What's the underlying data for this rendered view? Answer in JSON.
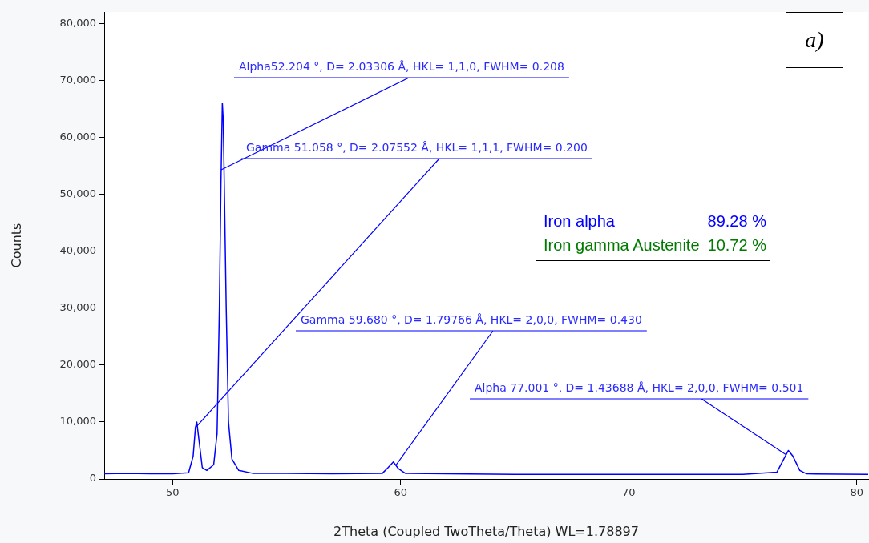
{
  "chart_data": {
    "type": "line",
    "xlabel": "2Theta (Coupled TwoTheta/Theta) WL=1.78897",
    "ylabel": "Counts",
    "x": [
      47,
      48,
      49,
      50,
      50.7,
      50.9,
      51.0,
      51.06,
      51.15,
      51.3,
      51.5,
      51.8,
      51.95,
      52.05,
      52.12,
      52.18,
      52.22,
      52.28,
      52.35,
      52.45,
      52.6,
      52.9,
      53.5,
      55,
      57,
      59.2,
      59.45,
      59.68,
      59.9,
      60.2,
      62,
      65,
      70,
      75,
      76.5,
      76.8,
      77.0,
      77.2,
      77.5,
      77.8,
      80.5
    ],
    "series": [
      {
        "color": "#0000ff",
        "values": [
          900,
          1000,
          900,
          900,
          1100,
          4000,
          9000,
          10000,
          7000,
          2000,
          1500,
          2500,
          8000,
          30000,
          52000,
          66000,
          63000,
          48000,
          30000,
          10000,
          3500,
          1500,
          1000,
          1000,
          900,
          1000,
          2000,
          3000,
          1800,
          1000,
          900,
          800,
          800,
          800,
          1200,
          3500,
          5000,
          4000,
          1500,
          900,
          800
        ]
      }
    ],
    "xlim": [
      47,
      80.5
    ],
    "xticks": [
      50,
      60,
      70,
      80
    ],
    "ylim": [
      0,
      82000
    ],
    "yticks": [
      {
        "value": 0,
        "label": "0"
      },
      {
        "value": 10000,
        "label": "10,000"
      },
      {
        "value": 20000,
        "label": "20,000"
      },
      {
        "value": 30000,
        "label": "30,000"
      },
      {
        "value": 40000,
        "label": "40,000"
      },
      {
        "value": 50000,
        "label": "50,000"
      },
      {
        "value": 60000,
        "label": "60,000"
      },
      {
        "value": 70000,
        "label": "70,000"
      },
      {
        "value": 80000,
        "label": "80,000"
      }
    ],
    "grid": false,
    "legend": false,
    "marker": "none",
    "line_style": "solid",
    "annotations": [
      {
        "text": "Alpha52.204 °, D= 2.03306 Å, HKL= 1,1,0, FWHM= 0.208",
        "x": 52.13,
        "y": 54300
      },
      {
        "text": "Gamma 51.058 °, D= 2.07552 Å, HKL= 1,1,1, FWHM= 0.200",
        "x": 51.0,
        "y": 9000
      },
      {
        "text": "Gamma 59.680 °, D= 1.79766 Å, HKL= 2,0,0, FWHM= 0.430",
        "x": 59.79,
        "y": 2400
      },
      {
        "text": "Alpha 77.001 °, D= 1.43688 Å, HKL= 2,0,0, FWHM= 0.501",
        "x": 76.9,
        "y": 4250
      },
      "a)",
      "Iron alpha",
      "89.28 %",
      "Iron gamma Austenite",
      "10.72 %"
    ]
  }
}
